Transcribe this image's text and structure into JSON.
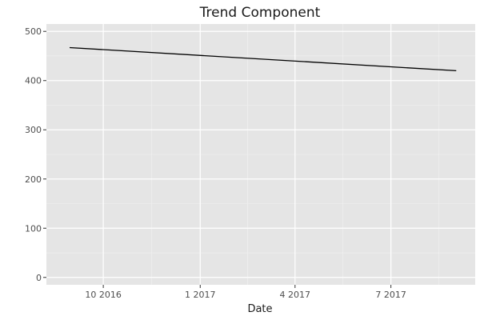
{
  "chart_data": {
    "type": "line",
    "title": "Trend Component",
    "xlabel": "Date",
    "ylabel": "",
    "ylim": [
      -15,
      515
    ],
    "xlim": [
      "2016-08-08",
      "2017-09-19"
    ],
    "x_ticks": [
      {
        "date": "2016-10-01",
        "label": "10 2016"
      },
      {
        "date": "2017-01-01",
        "label": "1 2017"
      },
      {
        "date": "2017-04-01",
        "label": "4 2017"
      },
      {
        "date": "2017-07-01",
        "label": "7 2017"
      }
    ],
    "y_ticks": [
      0,
      100,
      200,
      300,
      400,
      500
    ],
    "grid": true,
    "background": "#e5e5e5",
    "line_color": "#000000",
    "series": [
      {
        "x": [
          "2016-08-30",
          "2017-09-01"
        ],
        "y": [
          467,
          420
        ]
      }
    ]
  }
}
